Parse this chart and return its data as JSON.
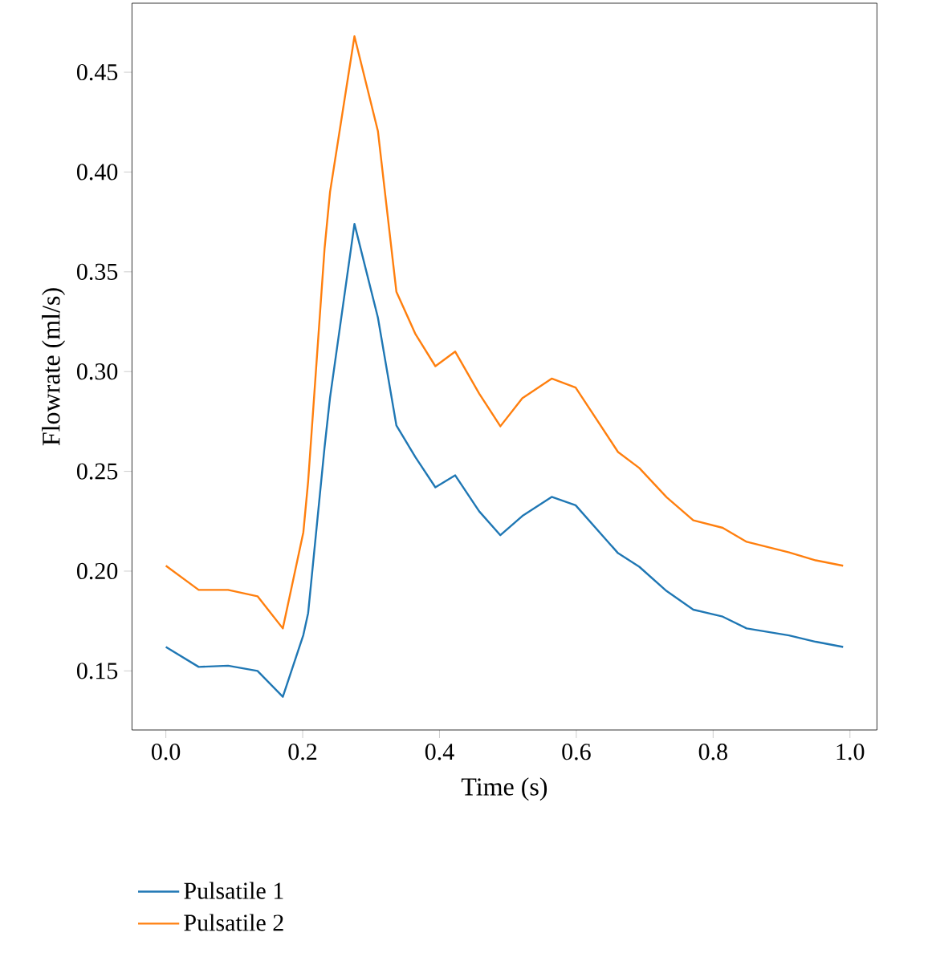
{
  "chart_data": {
    "type": "line",
    "xlabel": "Time (s)",
    "ylabel": "Flowrate (ml/s)",
    "x": [
      0,
      0.048,
      0.091,
      0.134,
      0.171,
      0.201,
      0.208,
      0.232,
      0.24,
      0.2757,
      0.31,
      0.337,
      0.365,
      0.394,
      0.423,
      0.458,
      0.489,
      0.521,
      0.564,
      0.599,
      0.661,
      0.692,
      0.732,
      0.771,
      0.814,
      0.849,
      0.911,
      0.95,
      0.99
    ],
    "series": [
      {
        "name": "Pulsatile 1",
        "color": "#1f77b4",
        "values": [
          0.162,
          0.152,
          0.1526,
          0.15,
          0.137,
          0.168,
          0.179,
          0.262,
          0.287,
          0.374,
          0.327,
          0.273,
          0.257,
          0.242,
          0.248,
          0.23,
          0.218,
          0.2276,
          0.2372,
          0.233,
          0.209,
          0.2022,
          0.19,
          0.1807,
          0.1772,
          0.1713,
          0.1678,
          0.1646,
          0.162
        ]
      },
      {
        "name": "Pulsatile 2",
        "color": "#ff7f0e",
        "values": [
          0.2027,
          0.1906,
          0.1906,
          0.1874,
          0.1713,
          0.2195,
          0.245,
          0.3616,
          0.39,
          0.468,
          0.4205,
          0.34,
          0.3187,
          0.3027,
          0.31,
          0.289,
          0.2726,
          0.2866,
          0.2965,
          0.292,
          0.2597,
          0.2517,
          0.237,
          0.2255,
          0.2217,
          0.2147,
          0.2094,
          0.2054,
          0.2027
        ]
      }
    ],
    "xlim": [
      -0.0495,
      1.0395
    ],
    "ylim": [
      0.1204,
      0.4846
    ],
    "xticks": [
      {
        "value": 0,
        "label": "0.0"
      },
      {
        "value": 0.2,
        "label": "0.2"
      },
      {
        "value": 0.4,
        "label": "0.4"
      },
      {
        "value": 0.6,
        "label": "0.6"
      },
      {
        "value": 0.8,
        "label": "0.8"
      },
      {
        "value": 1.0,
        "label": "1.0"
      }
    ],
    "yticks": [
      {
        "value": 0.15,
        "label": "0.15"
      },
      {
        "value": 0.2,
        "label": "0.20"
      },
      {
        "value": 0.25,
        "label": "0.25"
      },
      {
        "value": 0.3,
        "label": "0.30"
      },
      {
        "value": 0.35,
        "label": "0.35"
      },
      {
        "value": 0.4,
        "label": "0.40"
      },
      {
        "value": 0.45,
        "label": "0.45"
      }
    ],
    "grid": false,
    "legend": "bottom"
  }
}
